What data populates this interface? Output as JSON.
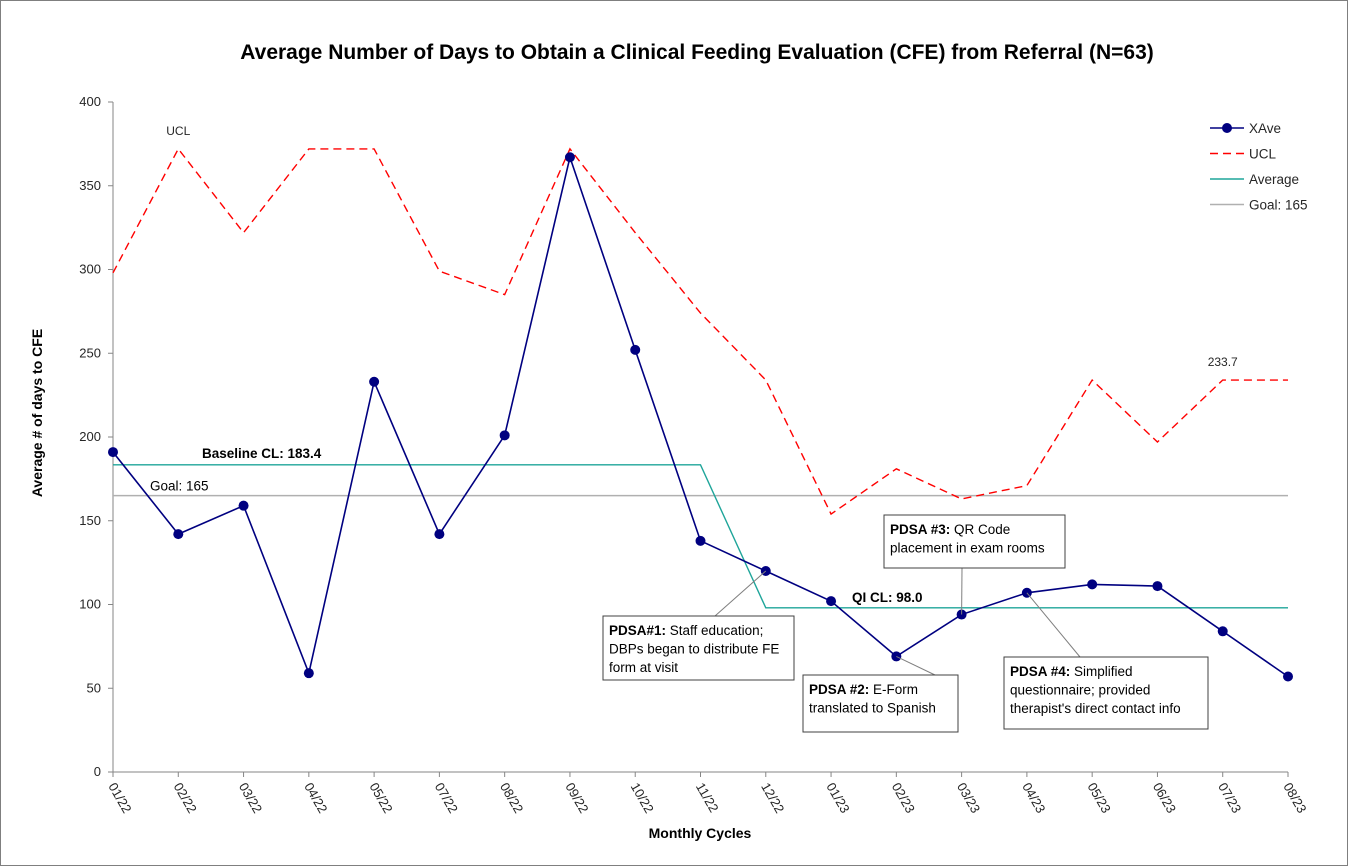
{
  "chart_data": {
    "type": "line",
    "title": "Average Number of Days to Obtain a Clinical Feeding Evaluation (CFE) from Referral (N=63)",
    "xlabel": "Monthly Cycles",
    "ylabel": "Average # of days to CFE",
    "ylim": [
      0,
      400
    ],
    "yticks": [
      0,
      50,
      100,
      150,
      200,
      250,
      300,
      350,
      400
    ],
    "categories": [
      "01/22",
      "02/22",
      "03/22",
      "04/22",
      "05/22",
      "07/22",
      "08/22",
      "09/22",
      "10/22",
      "11/22",
      "12/22",
      "01/23",
      "02/23",
      "03/23",
      "04/23",
      "05/23",
      "06/23",
      "07/23",
      "08/23"
    ],
    "grid": false,
    "legend_position": "top-right",
    "series": [
      {
        "name": "XAve",
        "color": "#000080",
        "style": "solid-markers",
        "values": [
          191,
          142,
          159,
          59,
          233,
          142,
          201,
          367,
          252,
          138,
          120,
          102,
          69,
          94,
          107,
          112,
          111,
          84,
          57
        ]
      },
      {
        "name": "UCL",
        "color": "#ff0000",
        "style": "dashed",
        "values": [
          298,
          372,
          322,
          372,
          372,
          299,
          285,
          372,
          322,
          274,
          234,
          154,
          181,
          163,
          171,
          234,
          197,
          234,
          234
        ]
      },
      {
        "name": "Average",
        "color": "#1fa59a",
        "style": "solid",
        "values": [
          183.4,
          183.4,
          183.4,
          183.4,
          183.4,
          183.4,
          183.4,
          183.4,
          183.4,
          183.4,
          98.0,
          98.0,
          98.0,
          98.0,
          98.0,
          98.0,
          98.0,
          98.0,
          98.0
        ]
      },
      {
        "name": "Goal: 165",
        "color": "#b0b0b0",
        "style": "solid",
        "values": [
          165,
          165,
          165,
          165,
          165,
          165,
          165,
          165,
          165,
          165,
          165,
          165,
          165,
          165,
          165,
          165,
          165,
          165,
          165
        ]
      }
    ],
    "labels": {
      "ucl_start": "UCL",
      "ucl_end": "233.7",
      "baseline": "Baseline CL: 183.4",
      "goal": "Goal: 165",
      "qi": "QI CL: 98.0"
    },
    "annotations": [
      {
        "id": "pdsa1",
        "bold": "PDSA#1:",
        "lines": [
          " Staff education;",
          "DBPs began to  distribute FE",
          "form at visit"
        ],
        "target_index": 10
      },
      {
        "id": "pdsa2",
        "bold": "PDSA #2:",
        "lines": [
          " E-Form",
          "translated to Spanish"
        ],
        "target_index": 12
      },
      {
        "id": "pdsa3",
        "bold": "PDSA #3:",
        "lines": [
          " QR Code",
          "placement in exam rooms"
        ],
        "target_index": 13
      },
      {
        "id": "pdsa4",
        "bold": "PDSA #4:",
        "lines": [
          " Simplified",
          "questionnaire; provided",
          "therapist's direct contact info"
        ],
        "target_index": 14
      }
    ]
  }
}
